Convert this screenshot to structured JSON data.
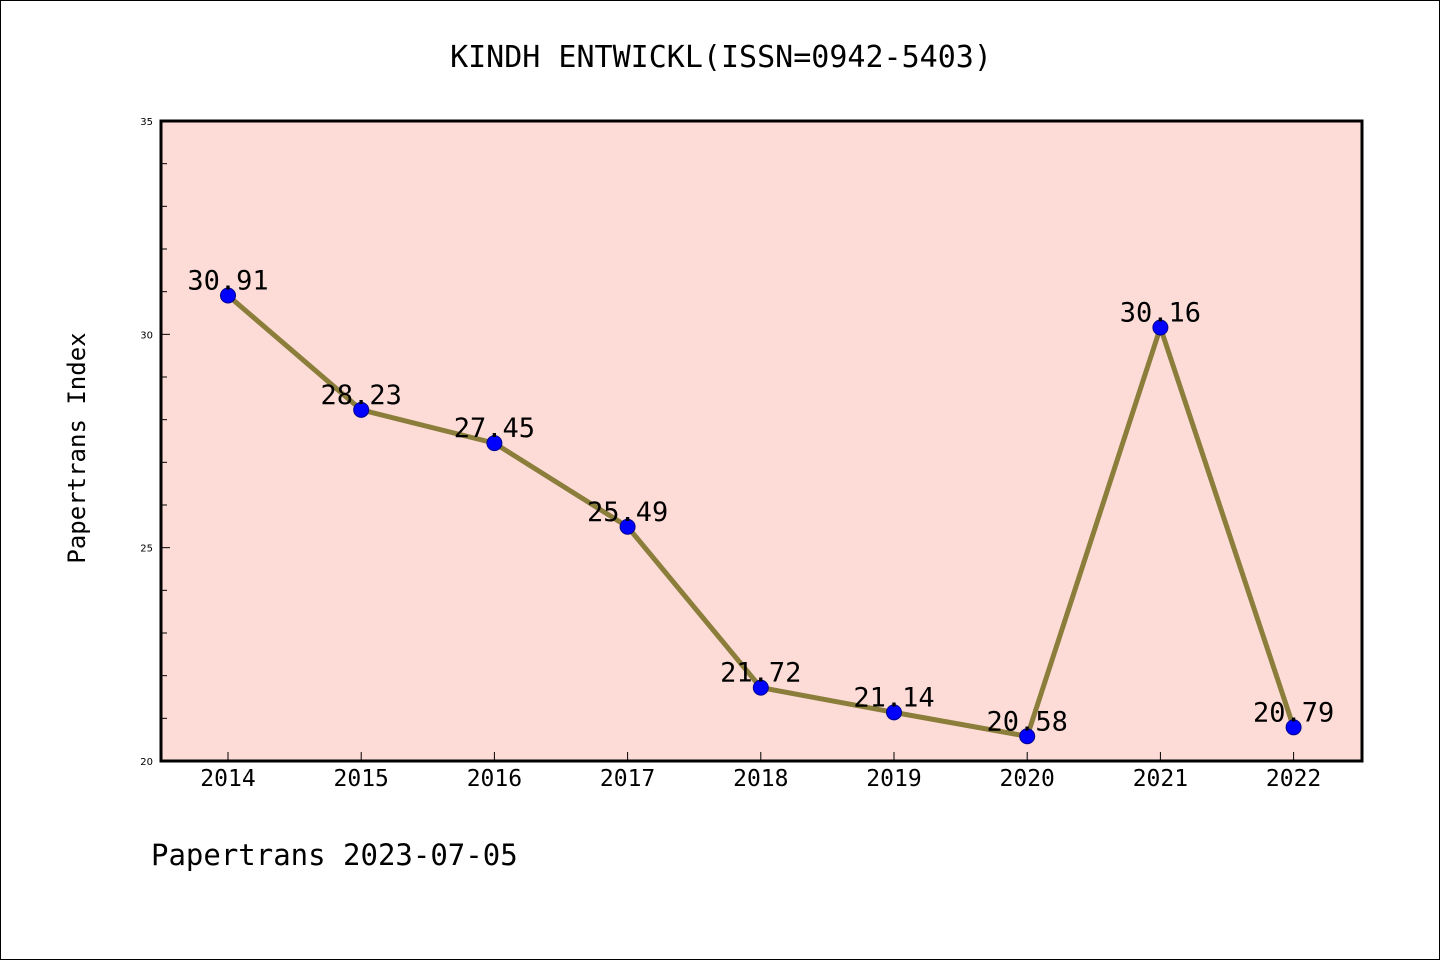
{
  "footer": "Papertrans 2023-07-05",
  "chart_data": {
    "type": "line",
    "title": "KINDH ENTWICKL(ISSN=0942-5403)",
    "xlabel": "",
    "ylabel": "Papertrans Index",
    "x": [
      "2014",
      "2015",
      "2016",
      "2017",
      "2018",
      "2019",
      "2020",
      "2021",
      "2022"
    ],
    "series": [
      {
        "values": [
          30.91,
          28.23,
          27.45,
          25.49,
          21.72,
          21.14,
          20.58,
          30.16,
          20.79
        ],
        "labels": [
          "30.91",
          "28.23",
          "27.45",
          "25.49",
          "21.72",
          "21.14",
          "20.58",
          "30.16",
          "20.79"
        ]
      }
    ],
    "ylim": [
      20,
      35
    ],
    "yticks": [
      "20",
      "25",
      "30",
      "35"
    ],
    "grid": false,
    "legend": "none",
    "colors": {
      "plot_background": "#fddcd8",
      "line": "#8b7d3a",
      "marker": "#0000ff",
      "axes": "#000000"
    }
  }
}
